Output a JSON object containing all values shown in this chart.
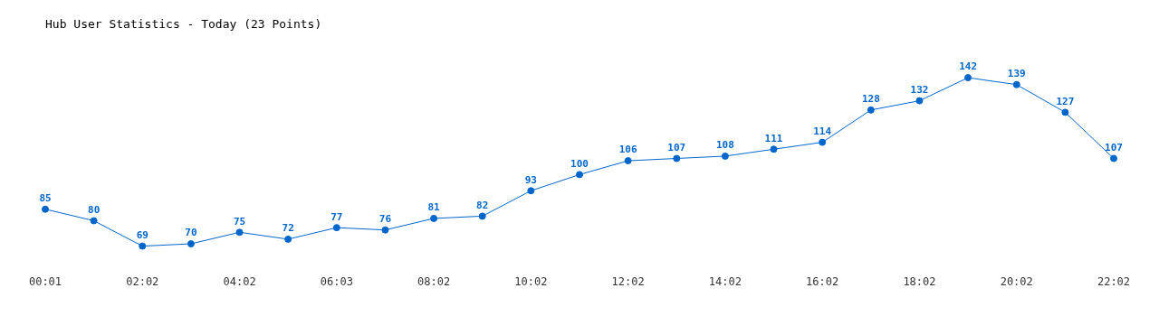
{
  "chart_data": {
    "type": "line",
    "title": "Hub User Statistics - Today (23 Points)",
    "categories": [
      "00:01",
      null,
      "02:02",
      null,
      "04:02",
      null,
      "06:03",
      null,
      "08:02",
      null,
      "10:02",
      null,
      "12:02",
      null,
      "14:02",
      null,
      "16:02",
      null,
      "18:02",
      null,
      "20:02",
      null,
      "22:02"
    ],
    "series": [
      {
        "color": "#0066cc",
        "values": [
          85,
          80,
          69,
          70,
          75,
          72,
          77,
          76,
          81,
          82,
          93,
          100,
          106,
          107,
          108,
          111,
          114,
          128,
          132,
          142,
          139,
          127,
          107
        ]
      }
    ],
    "data_labels": true,
    "marker": "circle",
    "grid": false,
    "legend": false
  }
}
